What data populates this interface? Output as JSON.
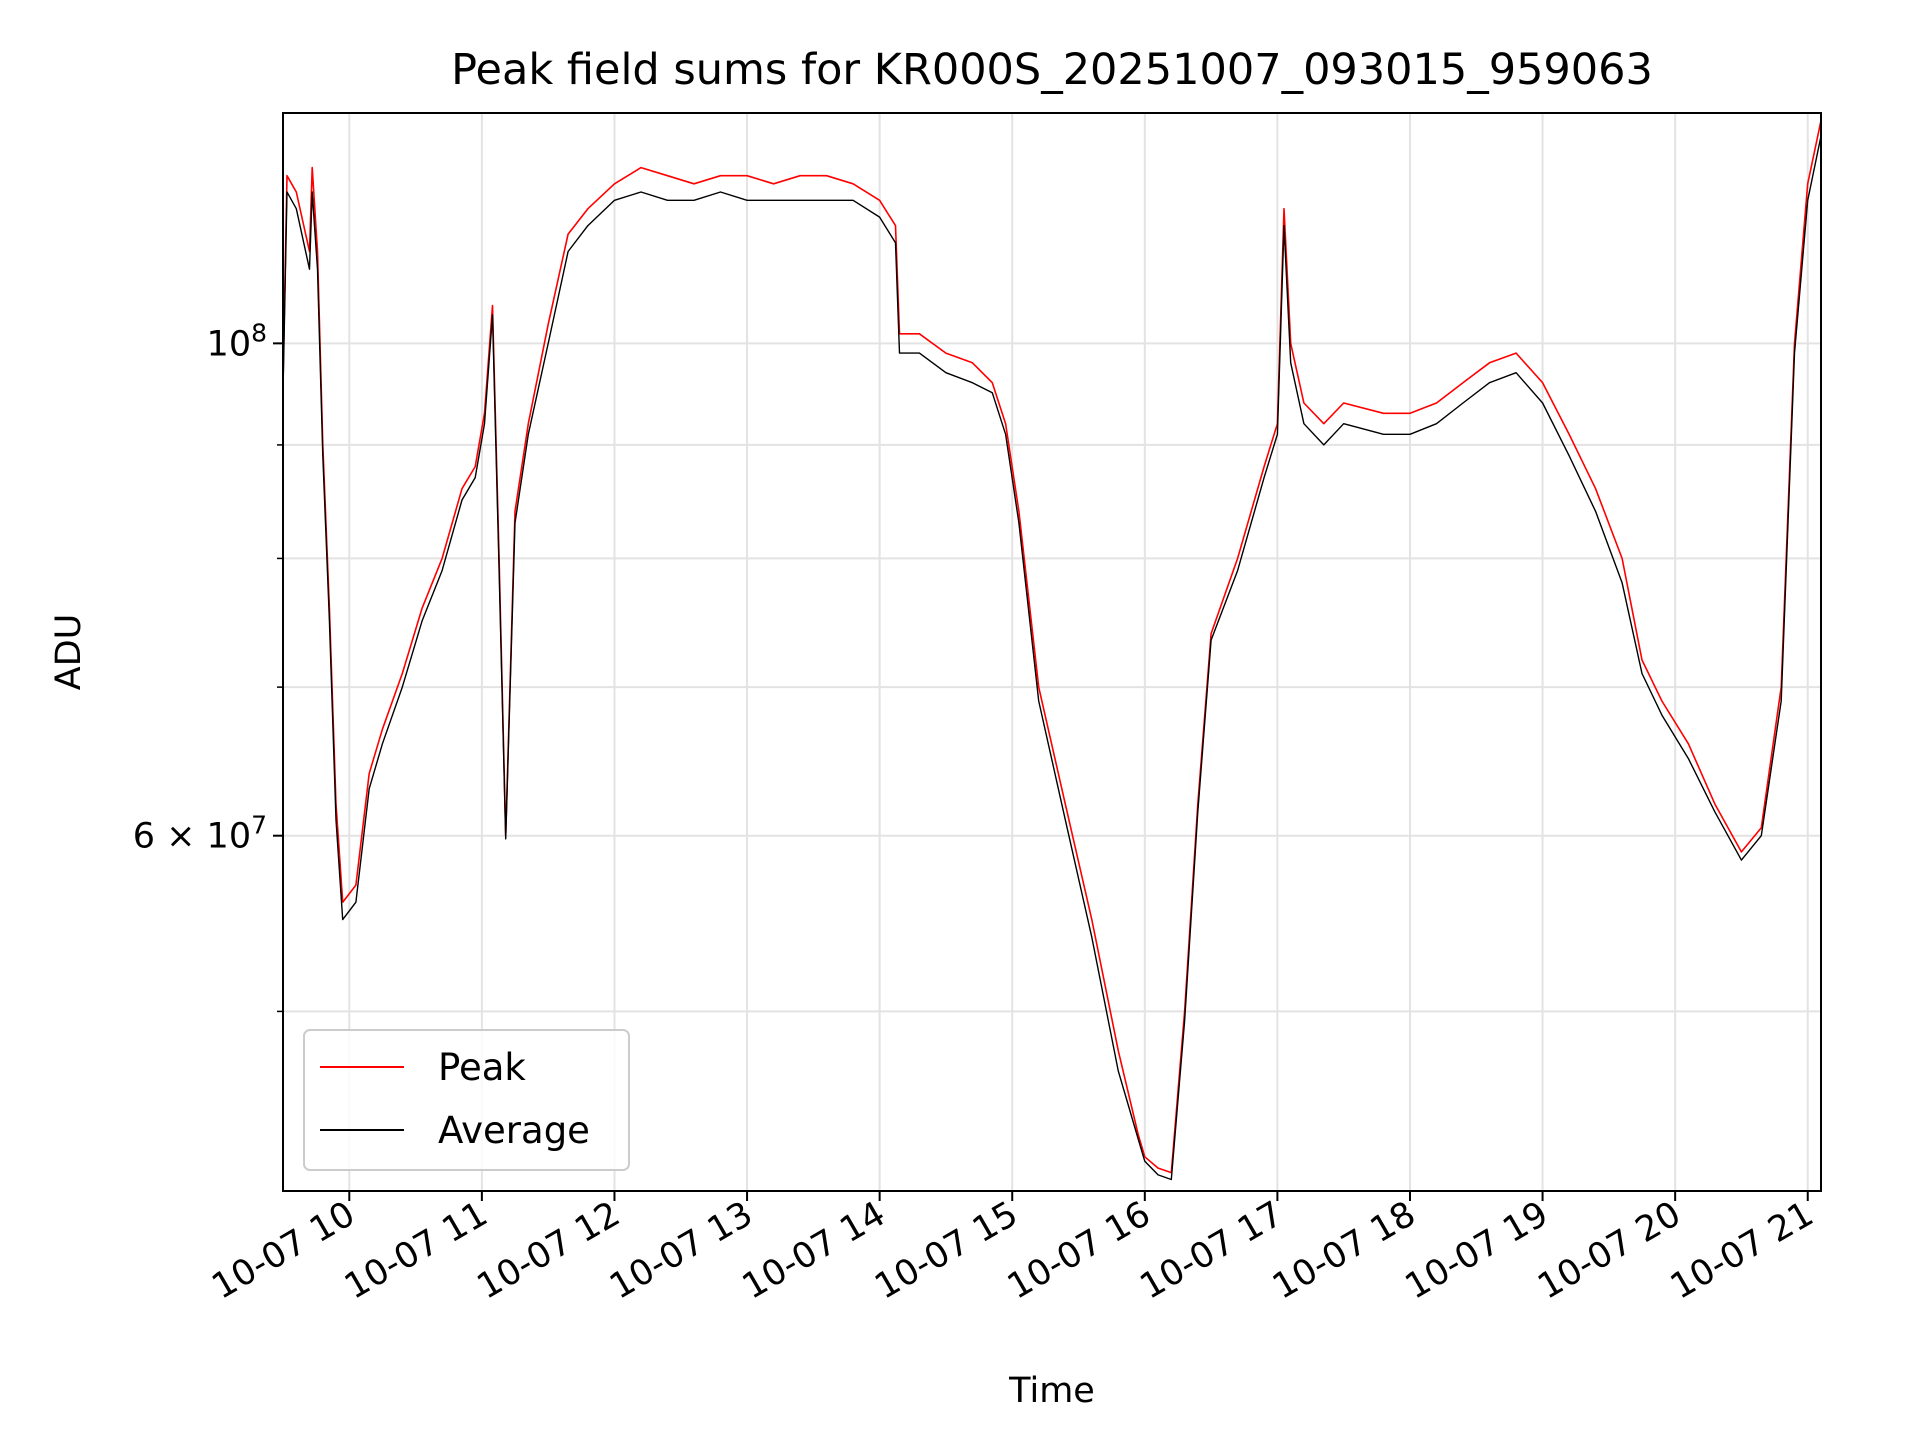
{
  "chart_data": {
    "type": "line",
    "title": "Peak field sums for KR000S_20251007_093015_959063",
    "xlabel": "Time",
    "ylabel": "ADU",
    "yscale": "log",
    "ylim": [
      41500000,
      127000000
    ],
    "xlim_hours": [
      9.5,
      21.1
    ],
    "grid": true,
    "legend_position": "lower-left",
    "x_ticks": [
      {
        "hour": 10,
        "label": "10-07 10"
      },
      {
        "hour": 11,
        "label": "10-07 11"
      },
      {
        "hour": 12,
        "label": "10-07 12"
      },
      {
        "hour": 13,
        "label": "10-07 13"
      },
      {
        "hour": 14,
        "label": "10-07 14"
      },
      {
        "hour": 15,
        "label": "10-07 15"
      },
      {
        "hour": 16,
        "label": "10-07 16"
      },
      {
        "hour": 17,
        "label": "10-07 17"
      },
      {
        "hour": 18,
        "label": "10-07 18"
      },
      {
        "hour": 19,
        "label": "10-07 19"
      },
      {
        "hour": 20,
        "label": "10-07 20"
      },
      {
        "hour": 21,
        "label": "10-07 21"
      }
    ],
    "y_major_ticks": [
      {
        "value": 60000000,
        "mantissa": "6",
        "exponent": "7"
      },
      {
        "value": 100000000,
        "mantissa": "",
        "exponent": "8"
      }
    ],
    "y_minor_ticks": [
      50000000,
      70000000,
      80000000,
      90000000
    ],
    "y_tick_base": "10",
    "y_tick_times": "×",
    "series": [
      {
        "name": "Peak",
        "color": "#ff0000",
        "points": [
          [
            9.5,
            96000000
          ],
          [
            9.53,
            119000000
          ],
          [
            9.6,
            117000000
          ],
          [
            9.7,
            110000000
          ],
          [
            9.72,
            120000000
          ],
          [
            9.76,
            110000000
          ],
          [
            9.8,
            90000000
          ],
          [
            9.85,
            76000000
          ],
          [
            9.9,
            62000000
          ],
          [
            9.95,
            56000000
          ],
          [
            10.05,
            57000000
          ],
          [
            10.15,
            64000000
          ],
          [
            10.25,
            67000000
          ],
          [
            10.4,
            71000000
          ],
          [
            10.55,
            76000000
          ],
          [
            10.7,
            80000000
          ],
          [
            10.85,
            86000000
          ],
          [
            10.95,
            88000000
          ],
          [
            11.02,
            93000000
          ],
          [
            11.08,
            104000000
          ],
          [
            11.13,
            80000000
          ],
          [
            11.18,
            60000000
          ],
          [
            11.25,
            84000000
          ],
          [
            11.35,
            92000000
          ],
          [
            11.5,
            102000000
          ],
          [
            11.65,
            112000000
          ],
          [
            11.8,
            115000000
          ],
          [
            12.0,
            118000000
          ],
          [
            12.2,
            120000000
          ],
          [
            12.4,
            119000000
          ],
          [
            12.6,
            118000000
          ],
          [
            12.8,
            119000000
          ],
          [
            13.0,
            119000000
          ],
          [
            13.2,
            118000000
          ],
          [
            13.4,
            119000000
          ],
          [
            13.6,
            119000000
          ],
          [
            13.8,
            118000000
          ],
          [
            14.0,
            116000000
          ],
          [
            14.12,
            113000000
          ],
          [
            14.15,
            101000000
          ],
          [
            14.3,
            101000000
          ],
          [
            14.5,
            99000000
          ],
          [
            14.7,
            98000000
          ],
          [
            14.85,
            96000000
          ],
          [
            14.95,
            92000000
          ],
          [
            15.05,
            84000000
          ],
          [
            15.2,
            70000000
          ],
          [
            15.4,
            62000000
          ],
          [
            15.6,
            55000000
          ],
          [
            15.8,
            48000000
          ],
          [
            15.95,
            44000000
          ],
          [
            16.0,
            43000000
          ],
          [
            16.1,
            42500000
          ],
          [
            16.2,
            42300000
          ],
          [
            16.3,
            50000000
          ],
          [
            16.4,
            62000000
          ],
          [
            16.5,
            74000000
          ],
          [
            16.7,
            80000000
          ],
          [
            16.9,
            88000000
          ],
          [
            17.0,
            92000000
          ],
          [
            17.05,
            115000000
          ],
          [
            17.1,
            100000000
          ],
          [
            17.2,
            94000000
          ],
          [
            17.35,
            92000000
          ],
          [
            17.5,
            94000000
          ],
          [
            17.8,
            93000000
          ],
          [
            18.0,
            93000000
          ],
          [
            18.2,
            94000000
          ],
          [
            18.4,
            96000000
          ],
          [
            18.6,
            98000000
          ],
          [
            18.8,
            99000000
          ],
          [
            19.0,
            96000000
          ],
          [
            19.2,
            91000000
          ],
          [
            19.4,
            86000000
          ],
          [
            19.6,
            80000000
          ],
          [
            19.75,
            72000000
          ],
          [
            19.9,
            69000000
          ],
          [
            20.1,
            66000000
          ],
          [
            20.3,
            62000000
          ],
          [
            20.5,
            59000000
          ],
          [
            20.65,
            60500000
          ],
          [
            20.8,
            70000000
          ],
          [
            20.9,
            100000000
          ],
          [
            21.0,
            118000000
          ],
          [
            21.1,
            126000000
          ]
        ]
      },
      {
        "name": "Average",
        "color": "#000000",
        "points": [
          [
            9.5,
            95000000
          ],
          [
            9.53,
            117000000
          ],
          [
            9.6,
            115000000
          ],
          [
            9.7,
            108000000
          ],
          [
            9.72,
            117000000
          ],
          [
            9.76,
            108000000
          ],
          [
            9.8,
            89000000
          ],
          [
            9.85,
            75000000
          ],
          [
            9.9,
            61000000
          ],
          [
            9.95,
            55000000
          ],
          [
            10.05,
            56000000
          ],
          [
            10.15,
            63000000
          ],
          [
            10.25,
            66000000
          ],
          [
            10.4,
            70000000
          ],
          [
            10.55,
            75000000
          ],
          [
            10.7,
            79000000
          ],
          [
            10.85,
            85000000
          ],
          [
            10.95,
            87000000
          ],
          [
            11.02,
            92000000
          ],
          [
            11.08,
            103000000
          ],
          [
            11.13,
            79000000
          ],
          [
            11.18,
            59800000
          ],
          [
            11.25,
            83000000
          ],
          [
            11.35,
            91000000
          ],
          [
            11.5,
            100000000
          ],
          [
            11.65,
            110000000
          ],
          [
            11.8,
            113000000
          ],
          [
            12.0,
            116000000
          ],
          [
            12.2,
            117000000
          ],
          [
            12.4,
            116000000
          ],
          [
            12.6,
            116000000
          ],
          [
            12.8,
            117000000
          ],
          [
            13.0,
            116000000
          ],
          [
            13.2,
            116000000
          ],
          [
            13.4,
            116000000
          ],
          [
            13.6,
            116000000
          ],
          [
            13.8,
            116000000
          ],
          [
            14.0,
            114000000
          ],
          [
            14.12,
            111000000
          ],
          [
            14.15,
            99000000
          ],
          [
            14.3,
            99000000
          ],
          [
            14.5,
            97000000
          ],
          [
            14.7,
            96000000
          ],
          [
            14.85,
            95000000
          ],
          [
            14.95,
            91000000
          ],
          [
            15.05,
            83000000
          ],
          [
            15.2,
            69000000
          ],
          [
            15.4,
            61000000
          ],
          [
            15.6,
            54000000
          ],
          [
            15.8,
            47000000
          ],
          [
            15.95,
            43800000
          ],
          [
            16.0,
            42800000
          ],
          [
            16.1,
            42200000
          ],
          [
            16.2,
            42000000
          ],
          [
            16.3,
            49500000
          ],
          [
            16.4,
            61500000
          ],
          [
            16.5,
            73500000
          ],
          [
            16.7,
            79000000
          ],
          [
            16.9,
            87000000
          ],
          [
            17.0,
            91000000
          ],
          [
            17.05,
            113000000
          ],
          [
            17.1,
            98000000
          ],
          [
            17.2,
            92000000
          ],
          [
            17.35,
            90000000
          ],
          [
            17.5,
            92000000
          ],
          [
            17.8,
            91000000
          ],
          [
            18.0,
            91000000
          ],
          [
            18.2,
            92000000
          ],
          [
            18.4,
            94000000
          ],
          [
            18.6,
            96000000
          ],
          [
            18.8,
            97000000
          ],
          [
            19.0,
            94000000
          ],
          [
            19.2,
            89000000
          ],
          [
            19.4,
            84000000
          ],
          [
            19.6,
            78000000
          ],
          [
            19.75,
            71000000
          ],
          [
            19.9,
            68000000
          ],
          [
            20.1,
            65000000
          ],
          [
            20.3,
            61500000
          ],
          [
            20.5,
            58500000
          ],
          [
            20.65,
            60000000
          ],
          [
            20.8,
            69000000
          ],
          [
            20.9,
            99000000
          ],
          [
            21.0,
            116000000
          ],
          [
            21.1,
            124000000
          ]
        ]
      }
    ]
  }
}
